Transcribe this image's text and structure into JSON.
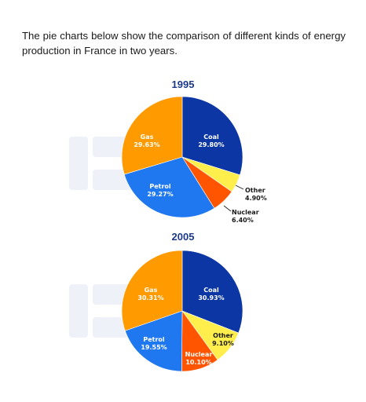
{
  "intro_text": "The pie charts below show the comparison of different kinds of energy production in France in two years.",
  "watermark_text": "EP",
  "colors": {
    "Coal": "#0b36a4",
    "Other": "#ffee4c",
    "Nuclear": "#ff5500",
    "Petrol": "#1f78f0",
    "Gas": "#ff9a00",
    "title": "#1d3a8a"
  },
  "chart_data": [
    {
      "type": "pie",
      "title": "1995",
      "categories": [
        "Coal",
        "Other",
        "Nuclear",
        "Petrol",
        "Gas"
      ],
      "values": [
        29.8,
        4.9,
        6.4,
        29.27,
        29.63
      ],
      "labels": [
        "29.80%",
        "4.90%",
        "6.40%",
        "29.27%",
        "29.63%"
      ]
    },
    {
      "type": "pie",
      "title": "2005",
      "categories": [
        "Coal",
        "Other",
        "Nuclear",
        "Petrol",
        "Gas"
      ],
      "values": [
        30.93,
        9.1,
        10.1,
        19.55,
        30.31
      ],
      "labels": [
        "30.93%",
        "9.10%",
        "10.10%",
        "19.55%",
        "30.31%"
      ]
    }
  ]
}
